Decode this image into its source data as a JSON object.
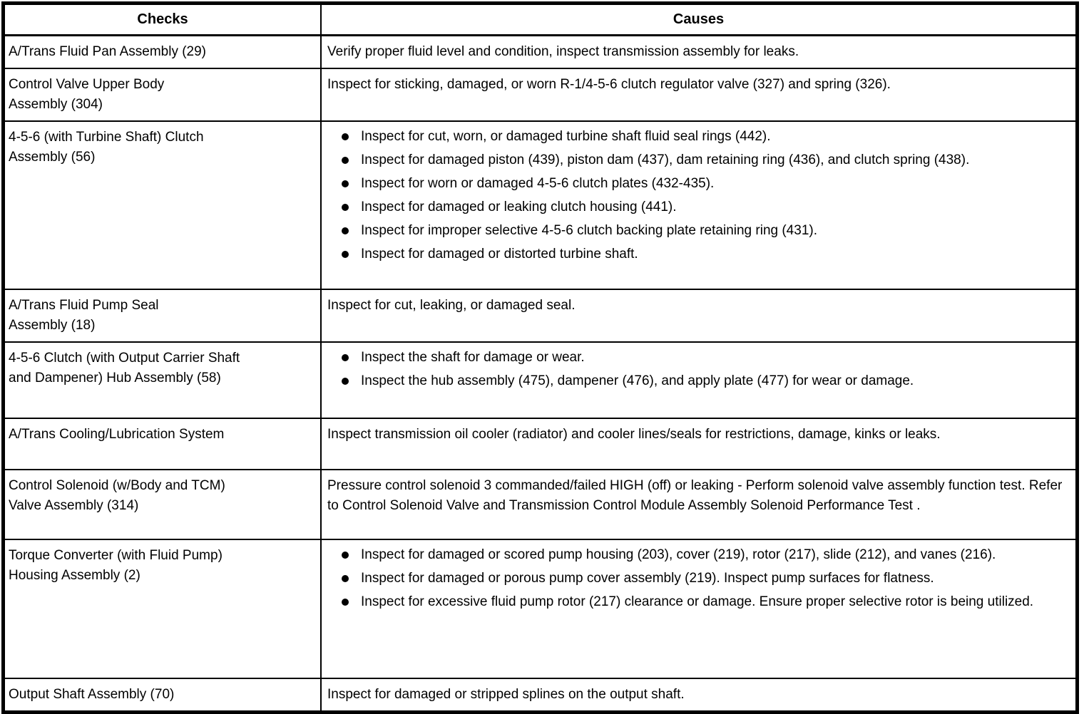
{
  "document": {
    "kind": "transmission diagnostic checks table"
  },
  "table": {
    "headers": {
      "checks": "Checks",
      "causes": "Causes"
    },
    "ink_color": "#000000",
    "paper_color": "#ffffff",
    "rows": [
      {
        "check_lines": [
          "A/Trans Fluid Pan Assembly (29)"
        ],
        "causes_text": "Verify proper fluid level and condition, inspect transmission assembly for leaks."
      },
      {
        "check_lines": [
          "Control Valve Upper Body",
          "Assembly (304)"
        ],
        "causes_text": "Inspect for sticking, damaged, or worn R-1/4-5-6 clutch regulator valve (327) and spring (326)."
      },
      {
        "check_lines": [
          "4-5-6 (with Turbine Shaft) Clutch",
          "Assembly (56)"
        ],
        "causes_bullets": [
          "Inspect for cut, worn, or damaged turbine shaft fluid seal rings (442).",
          "Inspect for damaged piston (439), piston dam (437), dam retaining ring (436), and clutch spring (438).",
          "Inspect for worn or damaged 4-5-6 clutch plates (432-435).",
          "Inspect for damaged or leaking clutch housing (441).",
          "Inspect for improper selective 4-5-6 clutch backing plate retaining ring (431).",
          "Inspect for damaged or distorted turbine shaft."
        ]
      },
      {
        "check_lines": [
          "A/Trans Fluid Pump Seal",
          "Assembly (18)"
        ],
        "causes_text": "Inspect for cut, leaking, or damaged seal."
      },
      {
        "check_lines": [
          "4-5-6 Clutch (with Output Carrier Shaft",
          "and Dampener) Hub Assembly (58)"
        ],
        "causes_bullets": [
          "Inspect the shaft for damage or wear.",
          "Inspect the hub assembly (475), dampener (476), and apply plate (477) for wear or damage."
        ]
      },
      {
        "check_lines": [
          "A/Trans Cooling/Lubrication System"
        ],
        "causes_text": "Inspect transmission oil cooler (radiator) and cooler lines/seals for restrictions, damage, kinks or leaks."
      },
      {
        "check_lines": [
          "Control Solenoid (w/Body and TCM)",
          "Valve Assembly (314)"
        ],
        "causes_text": "Pressure control solenoid 3 commanded/failed HIGH (off) or leaking - Perform solenoid valve assembly function test. Refer to Control Solenoid Valve and Transmission Control Module Assembly Solenoid Performance Test ."
      },
      {
        "check_lines": [
          "Torque Converter (with Fluid Pump)",
          "Housing Assembly (2)"
        ],
        "causes_bullets": [
          "Inspect for damaged or scored pump housing (203), cover (219), rotor (217), slide (212), and vanes (216).",
          "Inspect for damaged or porous pump cover assembly (219). Inspect pump surfaces for flatness.",
          "Inspect for excessive fluid pump rotor (217) clearance or damage. Ensure proper selective rotor is being utilized."
        ]
      },
      {
        "check_lines": [
          "Output Shaft Assembly (70)"
        ],
        "causes_text": "Inspect for damaged or stripped splines on the output shaft."
      }
    ]
  }
}
